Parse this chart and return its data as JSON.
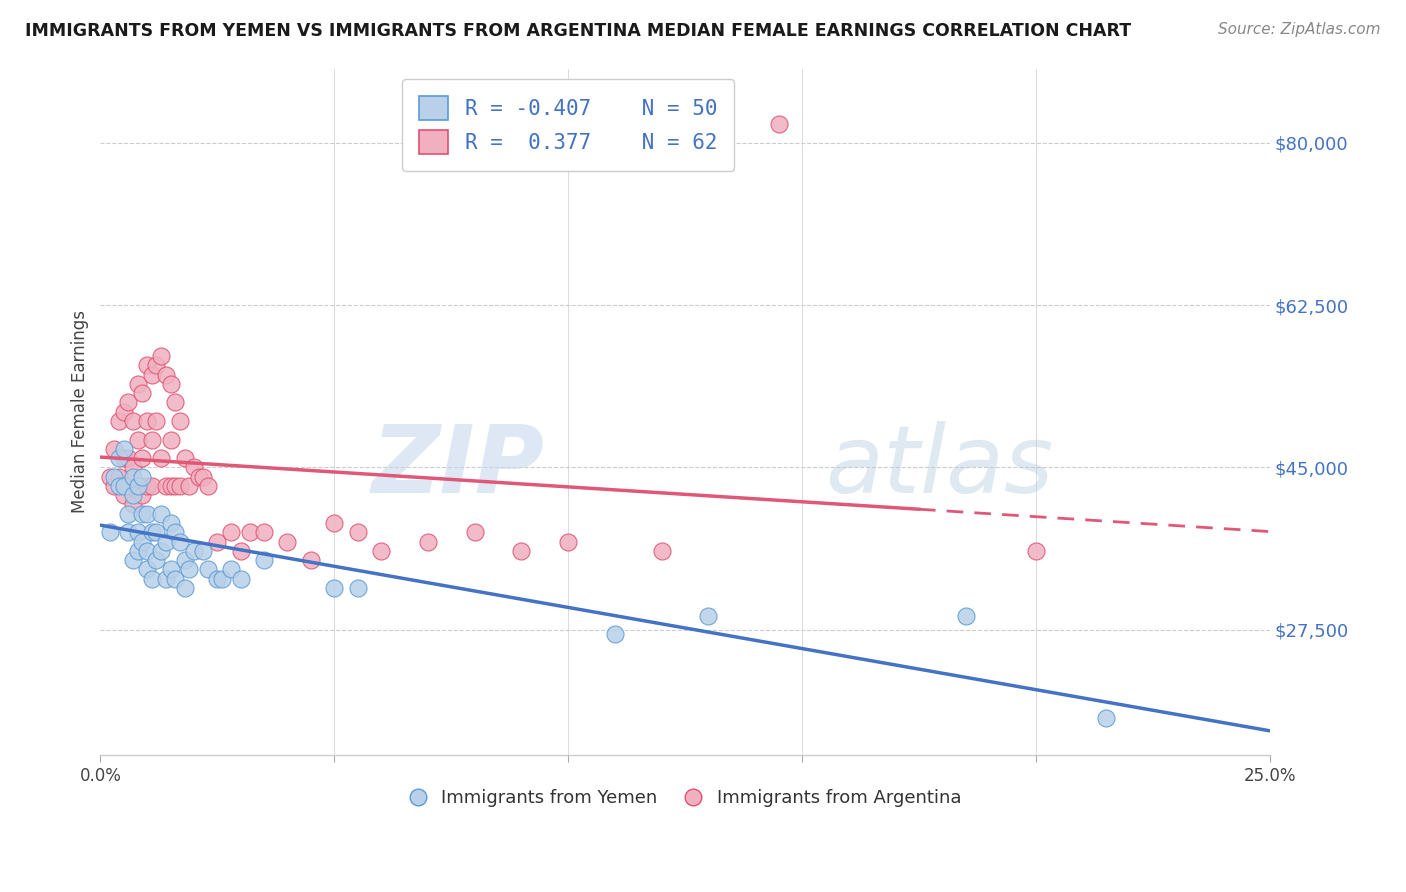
{
  "title": "IMMIGRANTS FROM YEMEN VS IMMIGRANTS FROM ARGENTINA MEDIAN FEMALE EARNINGS CORRELATION CHART",
  "source": "Source: ZipAtlas.com",
  "ylabel": "Median Female Earnings",
  "x_min": 0.0,
  "x_max": 0.25,
  "y_min": 14000,
  "y_max": 88000,
  "yticks": [
    27500,
    45000,
    62500,
    80000
  ],
  "ytick_labels": [
    "$27,500",
    "$45,000",
    "$62,500",
    "$80,000"
  ],
  "xticks": [
    0.0,
    0.05,
    0.1,
    0.15,
    0.2,
    0.25
  ],
  "xtick_labels": [
    "0.0%",
    "",
    "",
    "",
    "",
    "25.0%"
  ],
  "watermark_zip": "ZIP",
  "watermark_atlas": "atlas",
  "legend_r1": "R = -0.407",
  "legend_n1": "N = 50",
  "legend_r2": "R =  0.377",
  "legend_n2": "N = 62",
  "color_yemen_fill": "#b8d0e8",
  "color_yemen_edge": "#5b9bd5",
  "color_argentina_fill": "#f0b0c0",
  "color_argentina_edge": "#e05070",
  "color_trend_yemen": "#4472c4",
  "color_trend_argentina": "#e05878",
  "color_axis_labels": "#4472c4",
  "background_color": "#ffffff",
  "trend_solid_end_argentina": 0.175,
  "trend_dash_start_argentina": 0.175,
  "yemen_x": [
    0.002,
    0.003,
    0.004,
    0.004,
    0.005,
    0.005,
    0.006,
    0.006,
    0.007,
    0.007,
    0.007,
    0.008,
    0.008,
    0.008,
    0.009,
    0.009,
    0.009,
    0.01,
    0.01,
    0.01,
    0.011,
    0.011,
    0.012,
    0.012,
    0.013,
    0.013,
    0.014,
    0.014,
    0.015,
    0.015,
    0.016,
    0.016,
    0.017,
    0.018,
    0.018,
    0.019,
    0.02,
    0.022,
    0.023,
    0.025,
    0.026,
    0.028,
    0.03,
    0.035,
    0.05,
    0.055,
    0.11,
    0.13,
    0.185,
    0.215
  ],
  "yemen_y": [
    38000,
    44000,
    43000,
    46000,
    43000,
    47000,
    40000,
    38000,
    44000,
    42000,
    35000,
    43000,
    38000,
    36000,
    44000,
    40000,
    37000,
    40000,
    36000,
    34000,
    38000,
    33000,
    38000,
    35000,
    40000,
    36000,
    37000,
    33000,
    39000,
    34000,
    38000,
    33000,
    37000,
    35000,
    32000,
    34000,
    36000,
    36000,
    34000,
    33000,
    33000,
    34000,
    33000,
    35000,
    32000,
    32000,
    27000,
    29000,
    29000,
    18000
  ],
  "argentina_x": [
    0.002,
    0.003,
    0.003,
    0.004,
    0.004,
    0.005,
    0.005,
    0.005,
    0.006,
    0.006,
    0.006,
    0.007,
    0.007,
    0.007,
    0.008,
    0.008,
    0.008,
    0.009,
    0.009,
    0.009,
    0.01,
    0.01,
    0.01,
    0.011,
    0.011,
    0.011,
    0.012,
    0.012,
    0.013,
    0.013,
    0.014,
    0.014,
    0.015,
    0.015,
    0.015,
    0.016,
    0.016,
    0.017,
    0.017,
    0.018,
    0.019,
    0.02,
    0.021,
    0.022,
    0.023,
    0.025,
    0.028,
    0.03,
    0.032,
    0.035,
    0.04,
    0.045,
    0.05,
    0.055,
    0.06,
    0.07,
    0.08,
    0.09,
    0.1,
    0.12,
    0.145,
    0.2
  ],
  "argentina_y": [
    44000,
    47000,
    43000,
    50000,
    44000,
    51000,
    46000,
    42000,
    52000,
    46000,
    43000,
    50000,
    45000,
    41000,
    54000,
    48000,
    43000,
    53000,
    46000,
    42000,
    56000,
    50000,
    43000,
    55000,
    48000,
    43000,
    56000,
    50000,
    57000,
    46000,
    55000,
    43000,
    54000,
    48000,
    43000,
    52000,
    43000,
    50000,
    43000,
    46000,
    43000,
    45000,
    44000,
    44000,
    43000,
    37000,
    38000,
    36000,
    38000,
    38000,
    37000,
    35000,
    39000,
    38000,
    36000,
    37000,
    38000,
    36000,
    37000,
    36000,
    82000,
    36000
  ]
}
